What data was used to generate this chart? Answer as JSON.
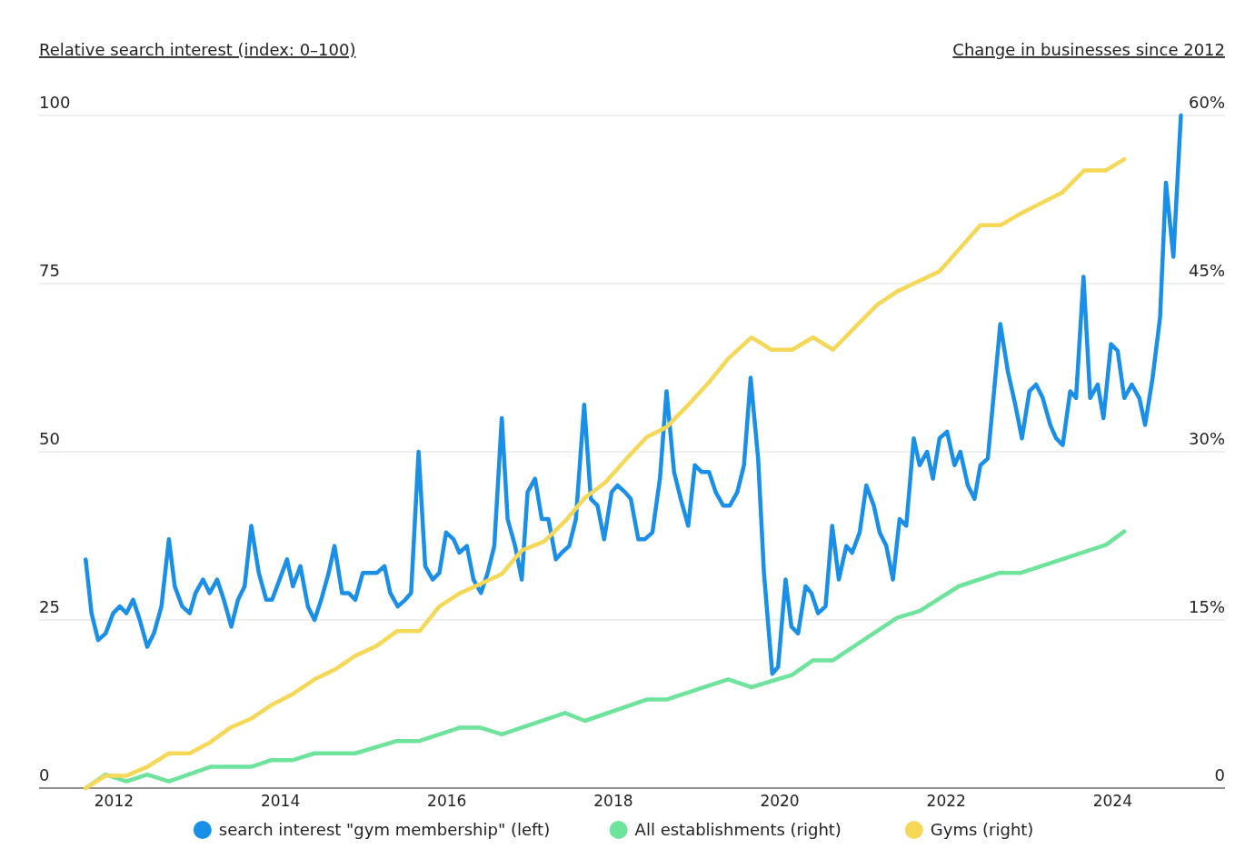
{
  "chart_data": {
    "type": "line",
    "ylabel": "Relative search interest (index: 0–100)",
    "y2label": "Change in businesses since 2012",
    "xlim": [
      2011.1,
      2025.35
    ],
    "xticks": [
      2012,
      2014,
      2016,
      2018,
      2020,
      2022,
      2024
    ],
    "ylim": [
      0,
      100
    ],
    "yticks": [
      0,
      25,
      50,
      75,
      100
    ],
    "y2lim": [
      0,
      60
    ],
    "y2ticks": [
      0,
      {
        "value": 15,
        "label": "15%"
      },
      {
        "value": 30,
        "label": "30%"
      },
      {
        "value": 45,
        "label": "45%"
      },
      {
        "value": 60,
        "label": "60%"
      }
    ],
    "grid": "y",
    "legend": "bottom",
    "marker": "none",
    "line_style": "solid",
    "series": [
      {
        "name": "search interest \"gym membership\" (left)",
        "color": "#1a8fe8",
        "axis": "y",
        "x": [
          2011.66,
          2011.73,
          2011.81,
          2011.9,
          2011.99,
          2012.07,
          2012.15,
          2012.23,
          2012.31,
          2012.4,
          2012.48,
          2012.57,
          2012.66,
          2012.73,
          2012.82,
          2012.91,
          2012.98,
          2013.07,
          2013.15,
          2013.24,
          2013.32,
          2013.41,
          2013.49,
          2013.57,
          2013.65,
          2013.74,
          2013.83,
          2013.9,
          2013.99,
          2014.08,
          2014.15,
          2014.24,
          2014.33,
          2014.41,
          2014.49,
          2014.58,
          2014.65,
          2014.74,
          2014.82,
          2014.9,
          2014.99,
          2015.07,
          2015.16,
          2015.25,
          2015.32,
          2015.41,
          2015.5,
          2015.57,
          2015.66,
          2015.74,
          2015.83,
          2015.91,
          2015.99,
          2016.08,
          2016.15,
          2016.24,
          2016.32,
          2016.41,
          2016.49,
          2016.57,
          2016.66,
          2016.73,
          2016.82,
          2016.9,
          2016.97,
          2017.06,
          2017.14,
          2017.22,
          2017.31,
          2017.38,
          2017.47,
          2017.55,
          2017.65,
          2017.73,
          2017.81,
          2017.89,
          2017.98,
          2018.05,
          2018.14,
          2018.21,
          2018.3,
          2018.38,
          2018.47,
          2018.56,
          2018.64,
          2018.73,
          2018.81,
          2018.9,
          2018.98,
          2019.06,
          2019.15,
          2019.23,
          2019.32,
          2019.4,
          2019.49,
          2019.57,
          2019.65,
          2019.74,
          2019.81,
          2019.91,
          2019.98,
          2020.07,
          2020.14,
          2020.22,
          2020.31,
          2020.38,
          2020.46,
          2020.55,
          2020.63,
          2020.71,
          2020.8,
          2020.87,
          2020.96,
          2021.04,
          2021.13,
          2021.2,
          2021.28,
          2021.36,
          2021.44,
          2021.52,
          2021.61,
          2021.68,
          2021.77,
          2021.84,
          2021.92,
          2022.01,
          2022.1,
          2022.17,
          2022.26,
          2022.34,
          2022.41,
          2022.5,
          2022.65,
          2022.74,
          2022.83,
          2022.91,
          2023.0,
          2023.08,
          2023.16,
          2023.25,
          2023.32,
          2023.4,
          2023.49,
          2023.56,
          2023.65,
          2023.73,
          2023.82,
          2023.89,
          2023.98,
          2024.06,
          2024.14,
          2024.23,
          2024.32,
          2024.39,
          2024.48,
          2024.57,
          2024.64,
          2024.73,
          2024.82
        ],
        "values": [
          34,
          26,
          22,
          23,
          26,
          27,
          26,
          28,
          25,
          21,
          23,
          27,
          37,
          30,
          27,
          26,
          29,
          31,
          29,
          31,
          28,
          24,
          28,
          30,
          39,
          32,
          28,
          28,
          31,
          34,
          30,
          33,
          27,
          25,
          28,
          32,
          36,
          29,
          29,
          28,
          32,
          32,
          32,
          33,
          29,
          27,
          28,
          29,
          50,
          33,
          31,
          32,
          38,
          37,
          35,
          36,
          31,
          29,
          32,
          36,
          55,
          40,
          36,
          31,
          44,
          46,
          40,
          40,
          34,
          35,
          36,
          40,
          57,
          43,
          42,
          37,
          44,
          45,
          44,
          43,
          37,
          37,
          38,
          46,
          59,
          47,
          43,
          39,
          48,
          47,
          47,
          44,
          42,
          42,
          44,
          48,
          61,
          49,
          32,
          17,
          18,
          31,
          24,
          23,
          30,
          29,
          26,
          27,
          39,
          31,
          36,
          35,
          38,
          45,
          42,
          38,
          36,
          31,
          40,
          39,
          52,
          48,
          50,
          46,
          52,
          53,
          48,
          50,
          45,
          43,
          48,
          49,
          69,
          62,
          57,
          52,
          59,
          60,
          58,
          54,
          52,
          51,
          59,
          58,
          76,
          58,
          60,
          55,
          66,
          65,
          58,
          60,
          58,
          54,
          61,
          70,
          90,
          79,
          100
        ]
      },
      {
        "name": "All establishments (right)",
        "color": "#6ee39b",
        "axis": "y2",
        "x": [
          2011.66,
          2011.9,
          2012.15,
          2012.4,
          2012.66,
          2013.16,
          2013.65,
          2013.89,
          2014.15,
          2014.41,
          2014.9,
          2015.4,
          2015.67,
          2016.16,
          2016.4,
          2016.66,
          2017.42,
          2017.66,
          2018.4,
          2018.64,
          2019.38,
          2019.66,
          2020.15,
          2020.4,
          2020.64,
          2021.41,
          2021.68,
          2022.15,
          2022.64,
          2022.9,
          2023.92,
          2024.14
        ],
        "values": [
          0,
          1.2,
          0.6,
          1.2,
          0.6,
          1.9,
          1.9,
          2.5,
          2.5,
          3.1,
          3.1,
          4.2,
          4.2,
          5.4,
          5.4,
          4.8,
          6.7,
          6,
          7.9,
          7.9,
          9.7,
          9,
          10.1,
          11.4,
          11.4,
          15.2,
          15.8,
          18,
          19.2,
          19.2,
          21.7,
          22.9
        ]
      },
      {
        "name": "Gyms (right)",
        "color": "#f5d857",
        "axis": "y2",
        "x": [
          2011.66,
          2011.9,
          2012.15,
          2012.4,
          2012.66,
          2012.91,
          2013.16,
          2013.4,
          2013.65,
          2013.89,
          2014.15,
          2014.41,
          2014.66,
          2014.9,
          2015.16,
          2015.4,
          2015.67,
          2015.91,
          2016.16,
          2016.4,
          2016.66,
          2016.9,
          2017.17,
          2017.42,
          2017.66,
          2017.91,
          2018.16,
          2018.4,
          2018.64,
          2018.89,
          2019.15,
          2019.38,
          2019.66,
          2019.9,
          2020.15,
          2020.4,
          2020.64,
          2021.17,
          2021.41,
          2021.92,
          2022.41,
          2022.65,
          2022.91,
          2023.39,
          2023.66,
          2023.92,
          2024.14
        ],
        "values": [
          0,
          1.1,
          1.1,
          1.9,
          3.1,
          3.1,
          4.1,
          5.4,
          6.2,
          7.4,
          8.4,
          9.7,
          10.6,
          11.8,
          12.7,
          14,
          14,
          16.2,
          17.4,
          18.2,
          19.1,
          21.2,
          22,
          23.8,
          25.9,
          27.3,
          29.4,
          31.3,
          32.2,
          34.1,
          36.2,
          38.3,
          40.2,
          39.1,
          39.1,
          40.2,
          39.1,
          43.1,
          44.3,
          46.1,
          50.2,
          50.2,
          51.3,
          53.1,
          55.1,
          55.1,
          56.1
        ]
      }
    ]
  }
}
